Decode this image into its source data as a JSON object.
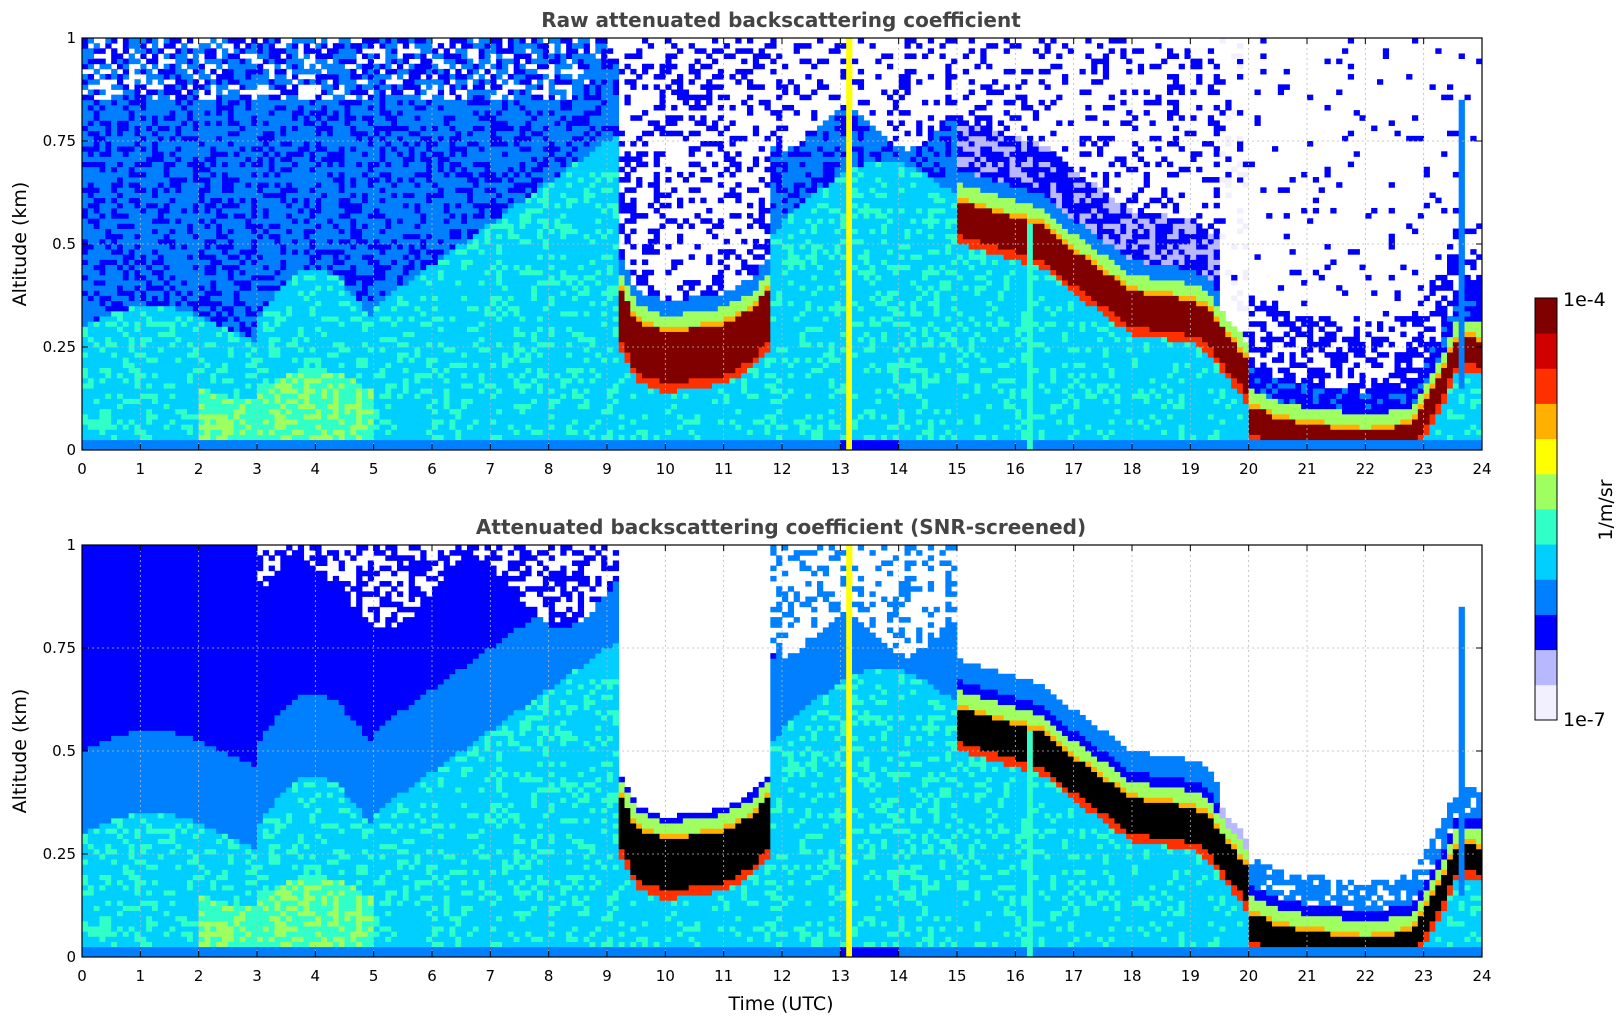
{
  "chart_data": [
    {
      "type": "heatmap",
      "title": "Raw attenuated backscattering coefficient",
      "xlabel": "",
      "ylabel": "Altitude (km)",
      "xlim": [
        0,
        24
      ],
      "ylim": [
        0,
        1
      ],
      "x_ticks": [
        "0",
        "1",
        "2",
        "3",
        "4",
        "5",
        "6",
        "7",
        "8",
        "9",
        "10",
        "11",
        "12",
        "13",
        "14",
        "15",
        "16",
        "17",
        "18",
        "19",
        "20",
        "21",
        "22",
        "23",
        "24"
      ],
      "y_ticks": [
        "0",
        "0.25",
        "0.5",
        "0.75",
        "1"
      ],
      "grid": true,
      "screened": false
    },
    {
      "type": "heatmap",
      "title": "Attenuated backscattering coefficient (SNR-screened)",
      "xlabel": "Time (UTC)",
      "ylabel": "Altitude (km)",
      "xlim": [
        0,
        24
      ],
      "ylim": [
        0,
        1
      ],
      "x_ticks": [
        "0",
        "1",
        "2",
        "3",
        "4",
        "5",
        "6",
        "7",
        "8",
        "9",
        "10",
        "11",
        "12",
        "13",
        "14",
        "15",
        "16",
        "17",
        "18",
        "19",
        "20",
        "21",
        "22",
        "23",
        "24"
      ],
      "y_ticks": [
        "0",
        "0.25",
        "0.5",
        "0.75",
        "1"
      ],
      "grid": true,
      "screened": true
    }
  ],
  "layers": {
    "cloud_top_layer": [
      [
        9.25,
        0.4
      ],
      [
        9.5,
        0.33
      ],
      [
        10,
        0.3
      ],
      [
        10.5,
        0.31
      ],
      [
        11,
        0.32
      ],
      [
        11.5,
        0.36
      ],
      [
        11.75,
        0.4
      ]
    ],
    "cloud_mid_layer": [
      [
        15.05,
        0.62
      ],
      [
        15.5,
        0.6
      ],
      [
        16,
        0.58
      ],
      [
        16.5,
        0.56
      ],
      [
        17,
        0.5
      ],
      [
        17.5,
        0.45
      ],
      [
        18,
        0.4
      ],
      [
        18.5,
        0.39
      ],
      [
        19,
        0.38
      ],
      [
        19.3,
        0.36
      ],
      [
        19.6,
        0.3
      ],
      [
        20,
        0.23
      ]
    ],
    "cloud_low_layer": [
      [
        20.1,
        0.12
      ],
      [
        20.5,
        0.09
      ],
      [
        21,
        0.08
      ],
      [
        21.5,
        0.07
      ],
      [
        22,
        0.06
      ],
      [
        22.5,
        0.07
      ],
      [
        22.8,
        0.08
      ],
      [
        23,
        0.13
      ],
      [
        23.3,
        0.2
      ],
      [
        23.6,
        0.3
      ],
      [
        24,
        0.28
      ]
    ],
    "vertical_streaks": [
      13.2,
      16.25,
      23.65
    ]
  },
  "colorbar": {
    "label": "1/m/sr",
    "max_label": "1e-4",
    "min_label": "1e-7",
    "colors": [
      "#f2f0ff",
      "#b8b8ff",
      "#0000ff",
      "#0080ff",
      "#00cfff",
      "#30ffc8",
      "#a0ff60",
      "#ffff00",
      "#ffb000",
      "#ff3000",
      "#d00000",
      "#800000"
    ]
  }
}
